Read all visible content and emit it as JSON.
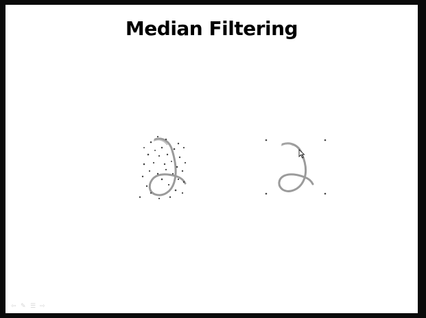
{
  "slide": {
    "title": "Median Filtering"
  },
  "figures": {
    "noisy_icon": "handwritten-digit-2-with-salt-and-pepper-noise",
    "filtered_icon": "handwritten-digit-2-median-filtered"
  },
  "toolbar": {
    "prev_icon": "previous-arrow-icon",
    "pen_icon": "pen-icon",
    "menu_icon": "menu-icon",
    "next_icon": "next-arrow-icon"
  },
  "colors": {
    "slide_background": "#ffffff",
    "frame": "#0a0a0a",
    "title": "#000000",
    "stroke": "#8a8a8a"
  }
}
